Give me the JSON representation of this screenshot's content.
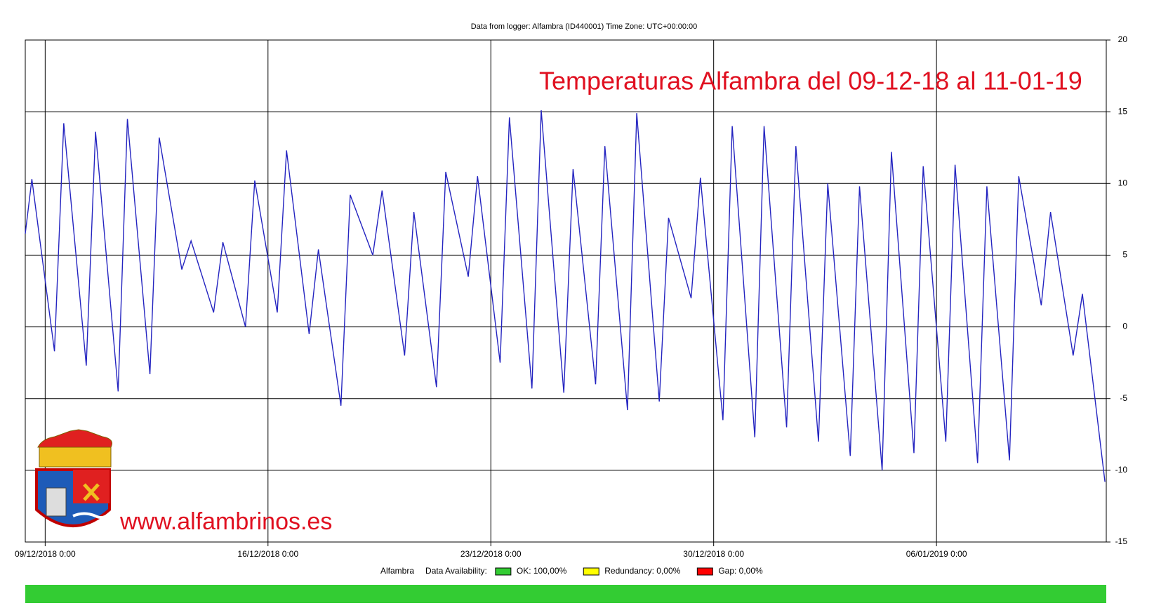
{
  "chart_data": {
    "type": "line",
    "header": "Data from logger: Alfambra (ID440001) Time Zone: UTC+00:00:00",
    "title": "Temperaturas Alfambra  del 09-12-18 al 11-01-19",
    "watermark": "www.alfambrinos.es",
    "x": [
      "08/12/2018 9:00",
      "08/12/2018 14:00",
      "09/12/2018 7:00",
      "09/12/2018 14:00",
      "10/12/2018 7:00",
      "10/12/2018 14:00",
      "11/12/2018 7:00",
      "11/12/2018 14:00",
      "12/12/2018 7:00",
      "12/12/2018 14:00",
      "13/12/2018 7:00",
      "13/12/2018 14:00",
      "14/12/2018 7:00",
      "14/12/2018 14:00",
      "15/12/2018 7:00",
      "15/12/2018 14:00",
      "16/12/2018 7:00",
      "16/12/2018 14:00",
      "17/12/2018 7:00",
      "17/12/2018 14:00",
      "18/12/2018 7:00",
      "18/12/2018 14:00",
      "19/12/2018 7:00",
      "19/12/2018 14:00",
      "20/12/2018 7:00",
      "20/12/2018 14:00",
      "21/12/2018 7:00",
      "21/12/2018 14:00",
      "22/12/2018 7:00",
      "22/12/2018 14:00",
      "23/12/2018 7:00",
      "23/12/2018 14:00",
      "24/12/2018 7:00",
      "24/12/2018 14:00",
      "25/12/2018 7:00",
      "25/12/2018 14:00",
      "26/12/2018 7:00",
      "26/12/2018 14:00",
      "27/12/2018 7:00",
      "27/12/2018 14:00",
      "28/12/2018 7:00",
      "28/12/2018 14:00",
      "29/12/2018 7:00",
      "29/12/2018 14:00",
      "30/12/2018 7:00",
      "30/12/2018 14:00",
      "31/12/2018 7:00",
      "31/12/2018 14:00",
      "01/01/2019 7:00",
      "01/01/2019 14:00",
      "02/01/2019 7:00",
      "02/01/2019 14:00",
      "03/01/2019 7:00",
      "03/01/2019 14:00",
      "04/01/2019 7:00",
      "04/01/2019 14:00",
      "05/01/2019 7:00",
      "05/01/2019 14:00",
      "06/01/2019 7:00",
      "06/01/2019 14:00",
      "07/01/2019 7:00",
      "07/01/2019 14:00",
      "08/01/2019 7:00",
      "08/01/2019 14:00",
      "09/01/2019 7:00",
      "09/01/2019 14:00",
      "10/01/2019 7:00",
      "10/01/2019 14:00",
      "11/01/2019 7:00"
    ],
    "series": [
      {
        "name": "Alfambra",
        "color": "#2424c0",
        "values": [
          6.5,
          10.3,
          -1.7,
          14.2,
          -2.7,
          13.6,
          -4.5,
          14.5,
          -3.3,
          13.2,
          4,
          6,
          1,
          5.9,
          0,
          10.2,
          1,
          12.3,
          -0.5,
          5.4,
          -5.5,
          9.2,
          5,
          9.5,
          -2,
          8,
          -4.2,
          10.8,
          3.5,
          10.5,
          -2.5,
          14.6,
          -4.3,
          15.1,
          -4.6,
          11,
          -4,
          12.6,
          -5.8,
          14.9,
          -5.2,
          7.6,
          2,
          10.4,
          -6.5,
          14,
          -7.7,
          14,
          -7,
          12.6,
          -8,
          10,
          -9,
          9.8,
          -10,
          12.2,
          -8.8,
          11.2,
          -8,
          11.3,
          -9.5,
          9.8,
          -9.3,
          10.5,
          1.5,
          8,
          -2,
          2.3,
          -10.8
        ]
      }
    ],
    "xlim": [
      "08/12/2018 9:00",
      "11/01/2019 8:00"
    ],
    "xticks": [
      "09/12/2018 0:00",
      "16/12/2018 0:00",
      "23/12/2018 0:00",
      "30/12/2018 0:00",
      "06/01/2019 0:00"
    ],
    "ylim": [
      -15,
      20
    ],
    "yticks": [
      -15,
      -10,
      -5,
      0,
      5,
      10,
      15,
      20
    ],
    "grid": true,
    "availability": {
      "label": "Data Availability:",
      "bar_color": "#33cc33",
      "items": [
        {
          "label": "OK: 100,00%",
          "color": "#33cc33"
        },
        {
          "label": "Redundancy: 0,00%",
          "color": "#ffff00"
        },
        {
          "label": "Gap: 0,00%",
          "color": "#ff0000"
        }
      ]
    }
  }
}
